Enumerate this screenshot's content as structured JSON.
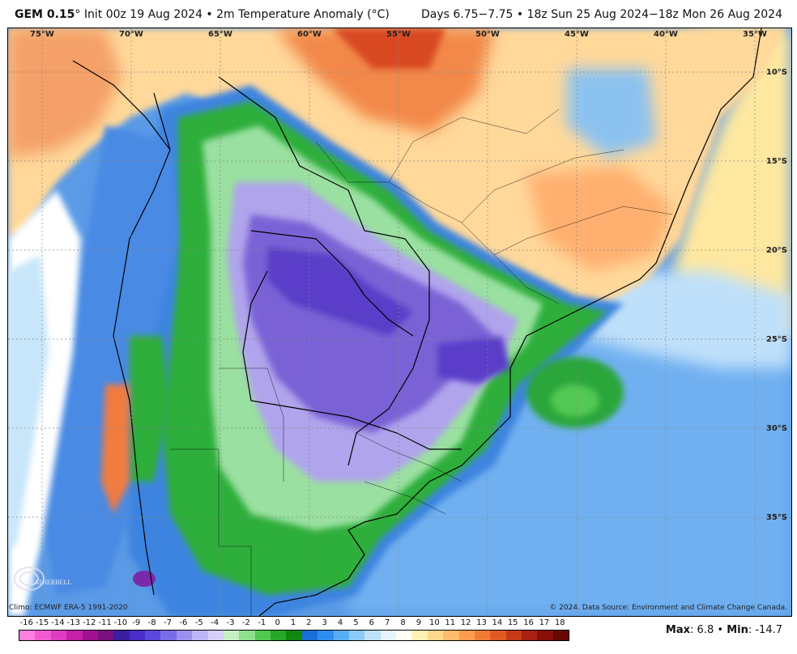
{
  "header": {
    "model": "GEM 0.15",
    "degree": "°",
    "init": "Init 00z 19 Aug 2024 • 2m Temperature Anomaly (°C)",
    "valid": "Days 6.75−7.75 • 18z Sun 25 Aug 2024−18z Mon 26 Aug 2024"
  },
  "map": {
    "longitude_labels": [
      "75°W",
      "70°W",
      "65°W",
      "60°W",
      "55°W",
      "50°W",
      "45°W",
      "40°W",
      "35°W"
    ],
    "latitude_labels": [
      "10°S",
      "15°S",
      "20°S",
      "25°S",
      "30°S",
      "35°S"
    ],
    "region": "South America (Brazil, Bolivia, Paraguay, Argentina, Uruguay)"
  },
  "footer": {
    "climo": "Climo: ECMWF ERA-5 1991-2020",
    "copyright": "© 2024. Data Source: Environment and Climate Change Canada.",
    "logo_text": "WEATHERBELL"
  },
  "colorbar": {
    "labels": [
      "-16",
      "-15",
      "-14",
      "-13",
      "-12",
      "-11",
      "-10",
      "-9",
      "-8",
      "-7",
      "-6",
      "-5",
      "-4",
      "-3",
      "-2",
      "-1",
      "0",
      "1",
      "2",
      "3",
      "4",
      "5",
      "6",
      "7",
      "8",
      "9",
      "10",
      "11",
      "12",
      "13",
      "14",
      "15",
      "16",
      "17",
      "18"
    ],
    "colors": [
      "#ff7fe0",
      "#f25ad0",
      "#e03cc0",
      "#c420a8",
      "#a01090",
      "#7a1080",
      "#3a1ea0",
      "#4a2cc8",
      "#5a48dc",
      "#7a6ce6",
      "#9c90ee",
      "#bcb4f6",
      "#d4d0fa",
      "#c4f0c4",
      "#8ee08e",
      "#52c852",
      "#28a828",
      "#108810",
      "#1a6ed8",
      "#2e8ef0",
      "#58aef6",
      "#8ccaf8",
      "#bce2fa",
      "#e6f4fc",
      "#fffff4",
      "#fff0b4",
      "#ffd88c",
      "#ffbc6c",
      "#ff9c4c",
      "#f07c34",
      "#e05a22",
      "#c83a16",
      "#a82010",
      "#881008",
      "#680806"
    ]
  },
  "stats": {
    "max_label": "Max",
    "max_value": "6.8",
    "sep": "•",
    "min_label": "Min",
    "min_value": "-14.7"
  },
  "colors": {
    "warm": "#f08040",
    "cold": "#6a54d8",
    "neutral_green": "#3cb43c",
    "ocean_blue": "#5a9ae6"
  }
}
